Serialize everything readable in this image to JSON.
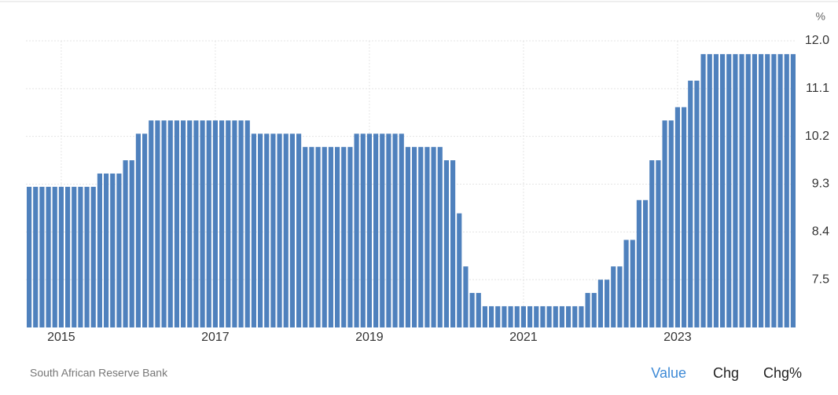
{
  "chart_data": {
    "type": "bar",
    "unit": "%",
    "source": "South African Reserve Bank",
    "toggles": [
      "Value",
      "Chg",
      "Chg%"
    ],
    "color": "#4f81bd",
    "grid": true,
    "ylim": [
      6.6,
      12.0
    ],
    "yticks": [
      7.5,
      8.4,
      9.3,
      10.2,
      11.1,
      {
        "value": 12.0,
        "label": "12.0"
      }
    ],
    "categories": [
      null,
      null,
      null,
      null,
      null,
      "2015",
      null,
      null,
      null,
      null,
      null,
      null,
      null,
      null,
      null,
      null,
      null,
      null,
      null,
      null,
      null,
      null,
      null,
      null,
      null,
      null,
      null,
      null,
      null,
      "2017",
      null,
      null,
      null,
      null,
      null,
      null,
      null,
      null,
      null,
      null,
      null,
      null,
      null,
      null,
      null,
      null,
      null,
      null,
      null,
      null,
      null,
      null,
      null,
      "2019",
      null,
      null,
      null,
      null,
      null,
      null,
      null,
      null,
      null,
      null,
      null,
      null,
      null,
      null,
      null,
      null,
      null,
      null,
      null,
      null,
      null,
      null,
      null,
      "2021",
      null,
      null,
      null,
      null,
      null,
      null,
      null,
      null,
      null,
      null,
      null,
      null,
      null,
      null,
      null,
      null,
      null,
      null,
      null,
      null,
      null,
      null,
      null,
      "2023",
      null,
      null,
      null,
      null,
      null,
      null,
      null,
      null,
      null,
      null,
      null,
      null,
      null,
      null,
      null,
      null,
      null,
      null
    ],
    "values": [
      9.25,
      9.25,
      9.25,
      9.25,
      9.25,
      9.25,
      9.25,
      9.25,
      9.25,
      9.25,
      9.25,
      9.5,
      9.5,
      9.5,
      9.5,
      9.75,
      9.75,
      10.25,
      10.25,
      10.5,
      10.5,
      10.5,
      10.5,
      10.5,
      10.5,
      10.5,
      10.5,
      10.5,
      10.5,
      10.5,
      10.5,
      10.5,
      10.5,
      10.5,
      10.5,
      10.25,
      10.25,
      10.25,
      10.25,
      10.25,
      10.25,
      10.25,
      10.25,
      10,
      10,
      10,
      10,
      10,
      10,
      10,
      10,
      10.25,
      10.25,
      10.25,
      10.25,
      10.25,
      10.25,
      10.25,
      10.25,
      10,
      10,
      10,
      10,
      10,
      10,
      9.75,
      9.75,
      8.75,
      7.75,
      7.25,
      7.25,
      7,
      7,
      7,
      7,
      7,
      7,
      7,
      7,
      7,
      7,
      7,
      7,
      7,
      7,
      7,
      7,
      7.25,
      7.25,
      7.5,
      7.5,
      7.75,
      7.75,
      8.25,
      8.25,
      9,
      9,
      9.75,
      9.75,
      10.5,
      10.5,
      10.75,
      10.75,
      11.25,
      11.25,
      11.75,
      11.75,
      11.75,
      11.75,
      11.75,
      11.75,
      11.75,
      11.75,
      11.75,
      11.75,
      11.75,
      11.75,
      11.75,
      11.75,
      11.75
    ]
  }
}
